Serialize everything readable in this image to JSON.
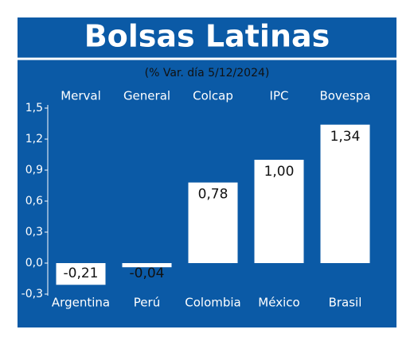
{
  "chart_data": {
    "type": "bar",
    "title": "Bolsas Latinas",
    "subtitle": "(% Var. día 5/12/2024)",
    "indices": [
      "Merval",
      "General",
      "Colcap",
      "IPC",
      "Bovespa"
    ],
    "categories": [
      "Argentina",
      "Perú",
      "Colombia",
      "México",
      "Brasil"
    ],
    "values": [
      -0.21,
      -0.04,
      0.78,
      1.0,
      1.34
    ],
    "value_labels": [
      "-0,21",
      "-0,04",
      "0,78",
      "1,00",
      "1,34"
    ],
    "color": "#ffffff",
    "ylim": [
      -0.3,
      1.5
    ],
    "yticks": [
      {
        "value": -0.3,
        "label": "-0,3"
      },
      {
        "value": 0,
        "label": "0,0"
      },
      {
        "value": 0.3,
        "label": "0,3"
      },
      {
        "value": 0.6,
        "label": "0,6"
      },
      {
        "value": 0.9,
        "label": "0,9"
      },
      {
        "value": 1.2,
        "label": "1,2"
      },
      {
        "value": 1.5,
        "label": "1,5"
      }
    ]
  }
}
